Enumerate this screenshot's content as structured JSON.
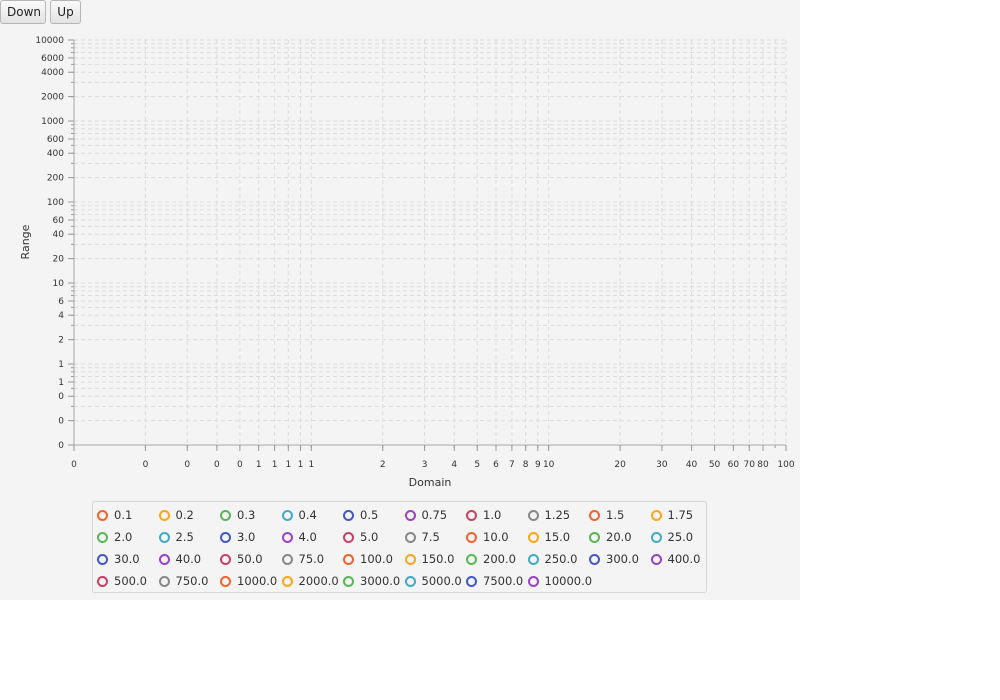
{
  "toolbar": {
    "down_label": "Down",
    "up_label": "Up"
  },
  "chart_data": {
    "type": "scatter",
    "xlabel": "Domain",
    "ylabel": "Range",
    "xscale": "log",
    "yscale": "log",
    "xlim": [
      0.1,
      100
    ],
    "ylim": [
      0.1,
      10000
    ],
    "grid": true,
    "legend_position": "bottom",
    "x_ticks": [
      {
        "v": 0.1,
        "t": "0"
      },
      {
        "v": 0.2,
        "t": "0"
      },
      {
        "v": 0.3,
        "t": "0"
      },
      {
        "v": 0.4,
        "t": "0"
      },
      {
        "v": 0.5,
        "t": "0"
      },
      {
        "v": 0.6,
        "t": "1"
      },
      {
        "v": 0.7,
        "t": "1"
      },
      {
        "v": 0.8,
        "t": "1"
      },
      {
        "v": 0.9,
        "t": "1"
      },
      {
        "v": 1,
        "t": "1"
      },
      {
        "v": 2,
        "t": "2"
      },
      {
        "v": 3,
        "t": "3"
      },
      {
        "v": 4,
        "t": "4"
      },
      {
        "v": 5,
        "t": "5"
      },
      {
        "v": 6,
        "t": "6"
      },
      {
        "v": 7,
        "t": "7"
      },
      {
        "v": 8,
        "t": "8"
      },
      {
        "v": 9,
        "t": "9"
      },
      {
        "v": 10,
        "t": "10"
      },
      {
        "v": 20,
        "t": "20"
      },
      {
        "v": 30,
        "t": "30"
      },
      {
        "v": 40,
        "t": "40"
      },
      {
        "v": 50,
        "t": "50"
      },
      {
        "v": 60,
        "t": "60"
      },
      {
        "v": 70,
        "t": "70"
      },
      {
        "v": 80,
        "t": "80"
      },
      {
        "v": 100,
        "t": "100"
      }
    ],
    "y_ticks": [
      {
        "v": 0.1,
        "t": "0"
      },
      {
        "v": 0.2,
        "t": "0"
      },
      {
        "v": 0.4,
        "t": "0"
      },
      {
        "v": 0.6,
        "t": "1"
      },
      {
        "v": 1,
        "t": "1"
      },
      {
        "v": 2,
        "t": "2"
      },
      {
        "v": 4,
        "t": "4"
      },
      {
        "v": 6,
        "t": "6"
      },
      {
        "v": 10,
        "t": "10"
      },
      {
        "v": 20,
        "t": "20"
      },
      {
        "v": 40,
        "t": "40"
      },
      {
        "v": 60,
        "t": "60"
      },
      {
        "v": 100,
        "t": "100"
      },
      {
        "v": 200,
        "t": "200"
      },
      {
        "v": 400,
        "t": "400"
      },
      {
        "v": 600,
        "t": "600"
      },
      {
        "v": 1000,
        "t": "1000"
      },
      {
        "v": 2000,
        "t": "2000"
      },
      {
        "v": 4000,
        "t": "4000"
      },
      {
        "v": 6000,
        "t": "6000"
      },
      {
        "v": 10000,
        "t": "10000"
      }
    ],
    "series": [
      {
        "name": "0.1",
        "color": "#f3622d"
      },
      {
        "name": "0.2",
        "color": "#fba71b"
      },
      {
        "name": "0.3",
        "color": "#57b757"
      },
      {
        "name": "0.4",
        "color": "#41a9c9"
      },
      {
        "name": "0.5",
        "color": "#4258c9"
      },
      {
        "name": "0.75",
        "color": "#9a42c8"
      },
      {
        "name": "1.0",
        "color": "#c84164"
      },
      {
        "name": "1.25",
        "color": "#888888"
      },
      {
        "name": "1.5",
        "color": "#f3622d"
      },
      {
        "name": "1.75",
        "color": "#fba71b"
      },
      {
        "name": "2.0",
        "color": "#57b757"
      },
      {
        "name": "2.5",
        "color": "#41a9c9"
      },
      {
        "name": "3.0",
        "color": "#4258c9"
      },
      {
        "name": "4.0",
        "color": "#9a42c8"
      },
      {
        "name": "5.0",
        "color": "#c84164"
      },
      {
        "name": "7.5",
        "color": "#888888"
      },
      {
        "name": "10.0",
        "color": "#f3622d"
      },
      {
        "name": "15.0",
        "color": "#fba71b"
      },
      {
        "name": "20.0",
        "color": "#57b757"
      },
      {
        "name": "25.0",
        "color": "#41a9c9"
      },
      {
        "name": "30.0",
        "color": "#4258c9"
      },
      {
        "name": "40.0",
        "color": "#9a42c8"
      },
      {
        "name": "50.0",
        "color": "#c84164"
      },
      {
        "name": "75.0",
        "color": "#888888"
      },
      {
        "name": "100.0",
        "color": "#f3622d"
      },
      {
        "name": "150.0",
        "color": "#fba71b"
      },
      {
        "name": "200.0",
        "color": "#57b757"
      },
      {
        "name": "250.0",
        "color": "#41a9c9"
      },
      {
        "name": "300.0",
        "color": "#4258c9"
      },
      {
        "name": "400.0",
        "color": "#9a42c8"
      },
      {
        "name": "500.0",
        "color": "#c84164"
      },
      {
        "name": "750.0",
        "color": "#888888"
      },
      {
        "name": "1000.0",
        "color": "#f3622d"
      },
      {
        "name": "2000.0",
        "color": "#fba71b"
      },
      {
        "name": "3000.0",
        "color": "#57b757"
      },
      {
        "name": "5000.0",
        "color": "#41a9c9"
      },
      {
        "name": "7500.0",
        "color": "#4258c9"
      },
      {
        "name": "10000.0",
        "color": "#9a42c8"
      }
    ]
  }
}
